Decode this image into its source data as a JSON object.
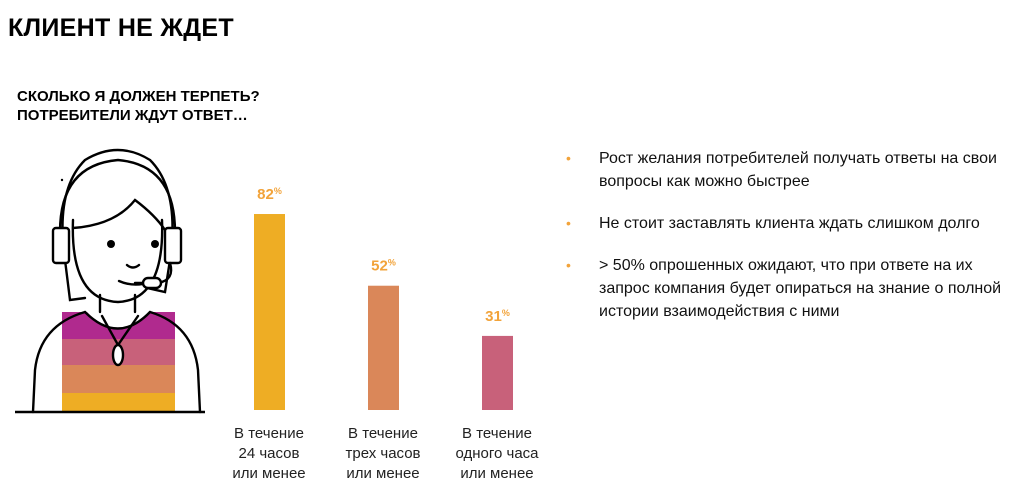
{
  "title": "КЛИЕНТ НЕ ЖДЕТ",
  "subtitle_lines": [
    "СКОЛЬКО Я ДОЛЖЕН ТЕРПЕТЬ?",
    "ПОТРЕБИТЕЛИ ЖДУТ ОТВЕТ…"
  ],
  "chart_data": {
    "type": "bar",
    "categories": [
      "В течение 24 часов или менее",
      "В течение трех часов или менее",
      "В течение одного часа или менее"
    ],
    "category_lines": [
      [
        "В течение",
        "24 часов",
        "или менее"
      ],
      [
        "В течение",
        "трех часов",
        "или менее"
      ],
      [
        "В течение",
        "одного часа",
        "или менее"
      ]
    ],
    "values": [
      82,
      52,
      31
    ],
    "value_labels": [
      "82",
      "52",
      "31"
    ],
    "unit": "%",
    "ylim": [
      0,
      100
    ],
    "colors": [
      "#EEAD24",
      "#DA8759",
      "#C8617A"
    ],
    "label_color": "#F2A33A"
  },
  "illustration": {
    "icon": "call-center-operator-with-headset",
    "stripe_colors": [
      "#B02A8E",
      "#C8617A",
      "#DA8759",
      "#EEAD24"
    ]
  },
  "bullets": [
    "Рост желания потребителей получать ответы на свои вопросы как можно быстрее",
    "Не стоит заставлять клиента ждать слишком долго",
    "> 50% опрошенных ожидают, что при ответе на их запрос компания будет опираться на знание о полной истории взаимодействия с ними"
  ],
  "bullet_color": "#F2A33A",
  "bullet_glyph": "•"
}
